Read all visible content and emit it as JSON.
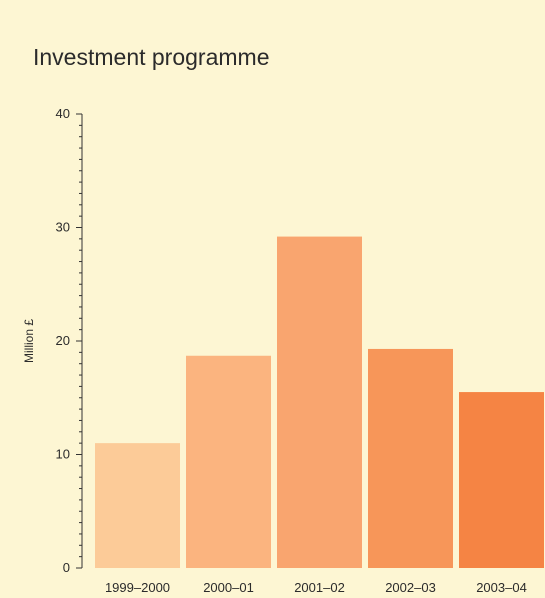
{
  "chart_data": {
    "type": "bar",
    "title": "Investment programme",
    "xlabel": "",
    "ylabel": "Million £",
    "categories": [
      "1999–2000",
      "2000–01",
      "2001–02",
      "2002–03",
      "2003–04"
    ],
    "values": [
      11,
      18.7,
      29.2,
      19.3,
      15.5
    ],
    "ylim": [
      0,
      40
    ],
    "yticks": [
      0,
      10,
      20,
      30,
      40
    ],
    "grid": false,
    "colors": [
      "#fccb98",
      "#fbb47f",
      "#f9a56f",
      "#f79659",
      "#f58444"
    ]
  }
}
